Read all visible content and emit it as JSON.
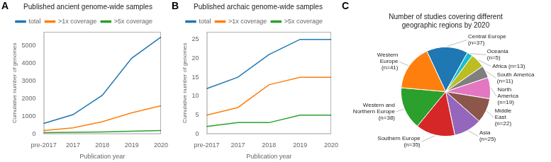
{
  "chart_data": [
    {
      "type": "line",
      "title": "Published ancient genome-wide samples",
      "xlabel": "Publication year",
      "ylabel": "Cumulative number of genomes",
      "annotations": [
        {
          "text": "A"
        }
      ],
      "categories": [
        "pre-2017",
        "2017",
        "2018",
        "2019",
        "2020"
      ],
      "series": [
        {
          "name": "total",
          "color": "#1f77b4",
          "values": [
            600,
            1100,
            2200,
            4300,
            5500
          ]
        },
        {
          "name": ">1x coverage",
          "color": "#ff7f0e",
          "values": [
            200,
            350,
            700,
            1200,
            1600
          ]
        },
        {
          "name": ">5x coverage",
          "color": "#2ca02c",
          "values": [
            80,
            100,
            120,
            160,
            200
          ]
        }
      ],
      "ylim": [
        0,
        5800
      ],
      "yticks": [
        0,
        1000,
        2000,
        3000,
        4000,
        5000
      ],
      "grid": false,
      "legend": "upper left"
    },
    {
      "type": "line",
      "title": "Published archaic genome-wide samples",
      "xlabel": "Publication year",
      "ylabel": "Cumulative number of genomes",
      "annotations": [
        {
          "text": "B"
        }
      ],
      "categories": [
        "pre-2017",
        "2017",
        "2018",
        "2019",
        "2020"
      ],
      "series": [
        {
          "name": "total",
          "color": "#1f77b4",
          "values": [
            12,
            15,
            21,
            25,
            25
          ]
        },
        {
          "name": ">1x coverage",
          "color": "#ff7f0e",
          "values": [
            5,
            7,
            13,
            15,
            15
          ]
        },
        {
          "name": ">5x coverage",
          "color": "#2ca02c",
          "values": [
            2,
            3,
            3,
            5,
            5
          ]
        }
      ],
      "ylim": [
        0,
        27
      ],
      "yticks": [
        0,
        5,
        10,
        15,
        20,
        25
      ],
      "grid": false,
      "legend": "upper left"
    },
    {
      "type": "pie",
      "title": "Number of studies covering different\ngeographic regions by 2020",
      "annotations": [
        {
          "text": "C"
        }
      ],
      "categories": [
        "Central Europe\n(n=37)",
        "Oceania\n(n=5)",
        "Africa (n=13)",
        "South America\n(n=11)",
        "North\nAmerica\n(n=19)",
        "Middle\nEast\n(n=22)",
        "Asia\n(n=25)",
        "Southern Europe\n(n=35)",
        "Western and\nNorthern Europe\n(n=38)",
        "Western\nEurope\n(n=41)"
      ],
      "values": [
        37,
        5,
        13,
        11,
        19,
        22,
        25,
        35,
        38,
        41
      ],
      "colors": [
        "#1f77b4",
        "#17becf",
        "#bcbd22",
        "#7f7f7f",
        "#e377c2",
        "#8c564b",
        "#9467bd",
        "#d62728",
        "#2ca02c",
        "#ff7f0e"
      ]
    }
  ]
}
